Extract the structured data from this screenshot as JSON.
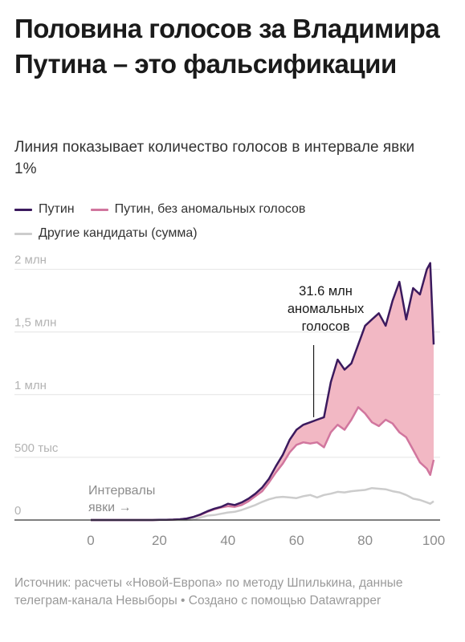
{
  "header": {
    "title": "Половина голосов за Владимира Путина – это фальсификации",
    "subtitle": "Линия показывает количество голосов в интервале явки 1%"
  },
  "legend": {
    "items": [
      {
        "label": "Путин",
        "color": "#3b1a5e"
      },
      {
        "label": "Путин, без аномальных голосов",
        "color": "#d1769e"
      },
      {
        "label": "Другие кандидаты (сумма)",
        "color": "#cccccc"
      }
    ]
  },
  "colors": {
    "fill": "#f2b8c4",
    "gridline": "#e4e4e4",
    "axis": "#999999",
    "tick_text": "#b3b3b3"
  },
  "chart_data": {
    "type": "area",
    "x": [
      0,
      2,
      4,
      6,
      8,
      10,
      12,
      14,
      16,
      18,
      20,
      22,
      24,
      26,
      28,
      30,
      32,
      34,
      36,
      38,
      40,
      42,
      44,
      46,
      48,
      50,
      52,
      54,
      56,
      58,
      60,
      62,
      64,
      66,
      68,
      70,
      72,
      74,
      76,
      78,
      80,
      82,
      84,
      86,
      88,
      90,
      92,
      94,
      96,
      98,
      99,
      100
    ],
    "series": [
      {
        "name": "Путин",
        "values": [
          0,
          0,
          0,
          0,
          0,
          0,
          0,
          0,
          0,
          0,
          1000,
          2000,
          3000,
          6000,
          12000,
          25000,
          45000,
          70000,
          90000,
          105000,
          130000,
          120000,
          140000,
          170000,
          210000,
          260000,
          330000,
          430000,
          520000,
          640000,
          720000,
          760000,
          780000,
          800000,
          820000,
          1100000,
          1280000,
          1200000,
          1250000,
          1400000,
          1550000,
          1600000,
          1650000,
          1550000,
          1750000,
          1900000,
          1600000,
          1850000,
          1800000,
          2000000,
          2050000,
          1400000
        ]
      },
      {
        "name": "Путин, без аномальных голосов",
        "values": [
          0,
          0,
          0,
          0,
          0,
          0,
          0,
          0,
          0,
          0,
          1000,
          2000,
          3000,
          6000,
          12000,
          25000,
          40000,
          65000,
          85000,
          100000,
          110000,
          105000,
          120000,
          150000,
          190000,
          230000,
          300000,
          380000,
          450000,
          540000,
          600000,
          620000,
          610000,
          620000,
          580000,
          700000,
          760000,
          720000,
          800000,
          900000,
          850000,
          780000,
          750000,
          800000,
          770000,
          700000,
          660000,
          560000,
          460000,
          410000,
          360000,
          480000
        ]
      },
      {
        "name": "Другие кандидаты (сумма)",
        "values": [
          0,
          0,
          0,
          0,
          0,
          0,
          0,
          0,
          0,
          0,
          0,
          0,
          0,
          0,
          0,
          5000,
          20000,
          35000,
          40000,
          50000,
          60000,
          65000,
          80000,
          100000,
          120000,
          145000,
          165000,
          180000,
          185000,
          180000,
          175000,
          190000,
          200000,
          180000,
          200000,
          210000,
          225000,
          220000,
          230000,
          235000,
          240000,
          255000,
          250000,
          245000,
          230000,
          220000,
          200000,
          170000,
          160000,
          140000,
          130000,
          150000
        ]
      }
    ],
    "annotations": [
      {
        "text": "31.6 млн аномальных голосов",
        "x": 65
      },
      {
        "text": "Интервалы явки →",
        "x": 0
      }
    ],
    "xlim": [
      0,
      100
    ],
    "ylim": [
      0,
      2100000
    ],
    "x_ticks": [
      0,
      20,
      40,
      60,
      80,
      100
    ],
    "y_ticks": [
      0,
      500000,
      1000000,
      1500000,
      2000000
    ],
    "x_tick_labels": [
      "0",
      "20",
      "40",
      "60",
      "80",
      "100"
    ],
    "y_tick_labels": [
      "0",
      "500 тыс",
      "1 млн",
      "1,5 млн",
      "2 млн"
    ],
    "grid": true
  },
  "annotation": {
    "main_lines": [
      "31.6 млн",
      "аномальных",
      "голосов"
    ],
    "axis_lines": [
      "Интервалы",
      "явки →"
    ]
  },
  "source": "Источник: расчеты «Новой-Европа» по методу Шпилькина, данные телеграм-канала Невыборы • Создано с помощью Datawrapper"
}
